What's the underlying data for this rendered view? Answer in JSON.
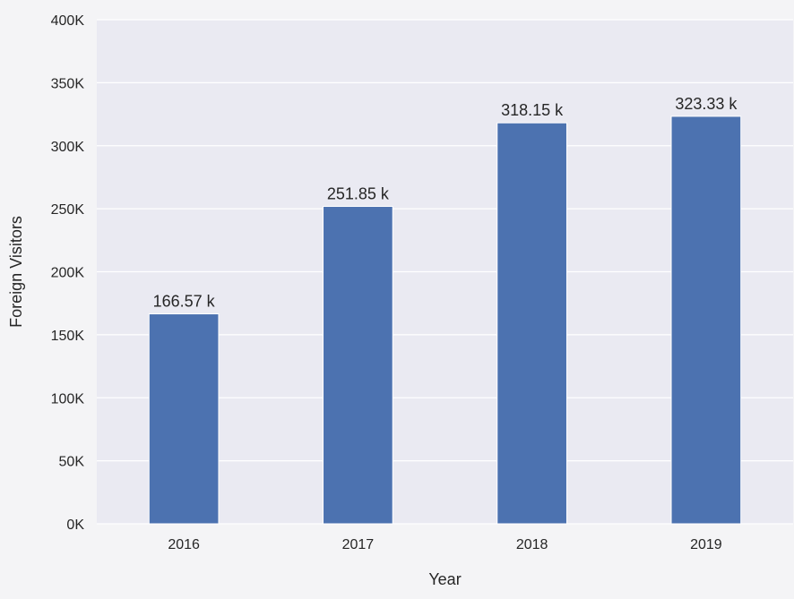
{
  "chart_data": {
    "type": "bar",
    "title": "",
    "xlabel": "Year",
    "ylabel": "Foreign Visitors",
    "categories": [
      "2016",
      "2017",
      "2018",
      "2019"
    ],
    "values": [
      166570,
      251850,
      318150,
      323330
    ],
    "data_labels": [
      "166.57 k",
      "251.85 k",
      "318.15 k",
      "323.33 k"
    ],
    "ylim": [
      0,
      400000
    ],
    "yticks": [
      0,
      50000,
      100000,
      150000,
      200000,
      250000,
      300000,
      350000,
      400000
    ],
    "ytick_labels": [
      "0K",
      "50K",
      "100K",
      "150K",
      "200K",
      "250K",
      "300K",
      "350K",
      "400K"
    ],
    "grid": true,
    "legend": "none",
    "colors": {
      "bar": "#4c72b0",
      "plot_background": "#eaeaf2",
      "figure_background": "#f4f4f6",
      "grid": "#ffffff",
      "text": "#262626"
    }
  }
}
